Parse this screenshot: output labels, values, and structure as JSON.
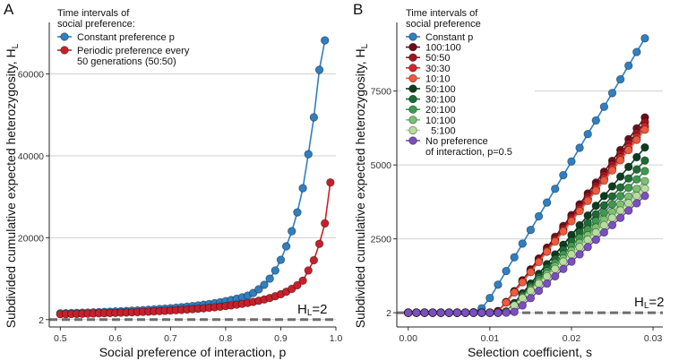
{
  "chart_data": [
    {
      "type": "line",
      "panel": "A",
      "legend_title": [
        "Time intervals of",
        "social preference:"
      ],
      "legend": "upper left",
      "xlabel": "Social preference of interaction, p",
      "ylabel": "Subdivided cumulative expected heterozygosity, H",
      "ylabel_subscript": "L",
      "annotation": {
        "base": "H",
        "subscript": "L",
        "suffix": "=2",
        "value": 2
      },
      "xlim": [
        0.48,
        1.0
      ],
      "xticks": [
        0.5,
        0.6,
        0.7,
        0.8,
        0.9,
        {
          "value": 1.0,
          "label": "1.0"
        }
      ],
      "ylim": [
        -1800,
        71500
      ],
      "yticks": [
        2,
        20000,
        40000,
        60000
      ],
      "grid": true,
      "x": [
        0.5,
        0.51,
        0.52,
        0.53,
        0.54,
        0.55,
        0.56,
        0.57,
        0.58,
        0.59,
        0.6,
        0.61,
        0.62,
        0.63,
        0.64,
        0.65,
        0.66,
        0.67,
        0.68,
        0.69,
        0.7,
        0.71,
        0.72,
        0.73,
        0.74,
        0.75,
        0.76,
        0.77,
        0.78,
        0.79,
        0.8,
        0.81,
        0.82,
        0.83,
        0.84,
        0.85,
        0.86,
        0.87,
        0.88,
        0.89,
        0.9,
        0.91,
        0.92,
        0.93,
        0.94,
        0.95,
        0.96,
        0.97,
        0.98,
        0.99
      ],
      "series": [
        {
          "name": "Constant preference p",
          "color": "#2f7fc1",
          "values": [
            1520,
            1560,
            1600,
            1640,
            1680,
            1725,
            1770,
            1820,
            1870,
            1925,
            1980,
            2040,
            2105,
            2175,
            2245,
            2320,
            2400,
            2485,
            2580,
            2680,
            2780,
            2900,
            3020,
            3150,
            3300,
            3450,
            3620,
            3800,
            4010,
            4240,
            4490,
            4770,
            5090,
            5440,
            5840,
            6500,
            7400,
            8500,
            10000,
            12000,
            14600,
            17900,
            21600,
            26200,
            32100,
            40400,
            49400,
            61000,
            68200,
            null
          ]
        },
        {
          "name": "Periodic preference every\n50 generations (50:50)",
          "color": "#c8202a",
          "values": [
            1300,
            1330,
            1360,
            1390,
            1420,
            1450,
            1490,
            1520,
            1560,
            1600,
            1640,
            1680,
            1730,
            1780,
            1830,
            1880,
            1940,
            2000,
            2060,
            2130,
            2200,
            2280,
            2360,
            2450,
            2550,
            2650,
            2760,
            2880,
            3010,
            3150,
            3300,
            3470,
            3650,
            3850,
            4070,
            4320,
            4600,
            4920,
            5280,
            5700,
            6200,
            6800,
            7500,
            8400,
            9500,
            12000,
            14500,
            18500,
            23500,
            33500
          ]
        }
      ]
    },
    {
      "type": "line",
      "panel": "B",
      "legend_title": [
        "Time intervals of",
        "social preference"
      ],
      "legend": "upper left",
      "xlabel": "Selection coefficient, s",
      "ylabel": "Subdivided cumulative expected heterozygosity, H",
      "ylabel_subscript": "L",
      "annotation": {
        "base": "H",
        "subscript": "L",
        "suffix": "=2",
        "value": 2
      },
      "xlim": [
        -0.0014,
        0.0312
      ],
      "xticks": [
        {
          "value": 0,
          "label": "0.00"
        },
        0.01,
        0.02,
        0.03
      ],
      "ylim": [
        -480,
        9670
      ],
      "yticks": [
        2,
        2500,
        5000,
        7500
      ],
      "grid": true,
      "x": [
        0,
        0.001,
        0.002,
        0.003,
        0.004,
        0.005,
        0.006,
        0.007,
        0.008,
        0.009,
        0.01,
        0.011,
        0.012,
        0.013,
        0.014,
        0.015,
        0.016,
        0.017,
        0.018,
        0.019,
        0.02,
        0.021,
        0.022,
        0.023,
        0.024,
        0.025,
        0.026,
        0.027,
        0.028,
        0.029
      ],
      "series": [
        {
          "name": "Constant p",
          "color": "#2f7fc1",
          "values": [
            2,
            2,
            2,
            2,
            2,
            2,
            2,
            2,
            20,
            150,
            500,
            950,
            1413,
            1876,
            2339,
            2802,
            3265,
            3728,
            4191,
            4654,
            5117,
            5580,
            6043,
            6506,
            6969,
            7432,
            7895,
            8358,
            8821,
            9284
          ]
        },
        {
          "name": "100:100",
          "color": "#6b0f1a",
          "values": [
            2,
            2,
            2,
            2,
            2,
            2,
            2,
            2,
            2,
            2,
            2,
            60,
            367,
            734,
            1101,
            1468,
            1835,
            2202,
            2569,
            2936,
            3303,
            3670,
            4037,
            4404,
            4771,
            5138,
            5505,
            5872,
            6239,
            6606
          ]
        },
        {
          "name": "50:50",
          "color": "#a3141f",
          "values": [
            2,
            2,
            2,
            2,
            2,
            2,
            2,
            2,
            2,
            2,
            2,
            50,
            358,
            716,
            1074,
            1432,
            1790,
            2148,
            2506,
            2864,
            3222,
            3580,
            3938,
            4296,
            4654,
            5012,
            5370,
            5728,
            6086,
            6444
          ]
        },
        {
          "name": "30:30",
          "color": "#d0262c",
          "values": [
            2,
            2,
            2,
            2,
            2,
            2,
            2,
            2,
            2,
            2,
            2,
            40,
            350,
            700,
            1050,
            1400,
            1750,
            2100,
            2450,
            2800,
            3150,
            3500,
            3850,
            4200,
            4550,
            4900,
            5250,
            5600,
            5950,
            6300
          ]
        },
        {
          "name": "10:10",
          "color": "#ee5a3c",
          "values": [
            2,
            2,
            2,
            2,
            2,
            2,
            2,
            2,
            2,
            2,
            2,
            30,
            344,
            688,
            1032,
            1376,
            1720,
            2064,
            2408,
            2752,
            3096,
            3440,
            3784,
            4128,
            4472,
            4816,
            5160,
            5504,
            5848,
            6192
          ]
        },
        {
          "name": "50:100",
          "color": "#0b3d1e",
          "values": [
            2,
            2,
            2,
            2,
            2,
            2,
            2,
            2,
            2,
            2,
            2,
            2,
            40,
            329,
            658,
            987,
            1316,
            1645,
            1974,
            2303,
            2632,
            2961,
            3290,
            3619,
            3948,
            4277,
            4606,
            4935,
            5264,
            5593
          ]
        },
        {
          "name": "30:100",
          "color": "#1f6b35",
          "values": [
            2,
            2,
            2,
            2,
            2,
            2,
            2,
            2,
            2,
            2,
            2,
            2,
            35,
            303,
            606,
            909,
            1212,
            1515,
            1818,
            2121,
            2424,
            2727,
            3030,
            3333,
            3636,
            3939,
            4242,
            4545,
            4848,
            5151
          ]
        },
        {
          "name": "20:100",
          "color": "#3f9a4f",
          "values": [
            2,
            2,
            2,
            2,
            2,
            2,
            2,
            2,
            2,
            2,
            2,
            2,
            30,
            282,
            564,
            846,
            1128,
            1410,
            1692,
            1974,
            2256,
            2538,
            2820,
            3102,
            3384,
            3666,
            3948,
            4230,
            4512,
            4794
          ]
        },
        {
          "name": "10:100",
          "color": "#79c271",
          "values": [
            2,
            2,
            2,
            2,
            2,
            2,
            2,
            2,
            2,
            2,
            2,
            2,
            25,
            262,
            524,
            786,
            1048,
            1310,
            1572,
            1834,
            2096,
            2358,
            2620,
            2882,
            3144,
            3406,
            3668,
            3930,
            4192,
            4454
          ]
        },
        {
          "name": "  5:100",
          "color": "#b8de9f",
          "values": [
            2,
            2,
            2,
            2,
            2,
            2,
            2,
            2,
            2,
            2,
            2,
            2,
            20,
            247,
            494,
            741,
            988,
            1235,
            1482,
            1729,
            1976,
            2223,
            2470,
            2717,
            2964,
            3211,
            3458,
            3705,
            3952,
            4199
          ]
        },
        {
          "name": "No preference\nof interaction, p=0.5",
          "color": "#7b4fbf",
          "values": [
            2,
            2,
            2,
            2,
            2,
            2,
            2,
            2,
            2,
            2,
            2,
            2,
            2,
            30,
            247,
            494,
            741,
            988,
            1235,
            1482,
            1729,
            1976,
            2223,
            2470,
            2717,
            2964,
            3211,
            3458,
            3705,
            3952
          ]
        }
      ]
    }
  ]
}
